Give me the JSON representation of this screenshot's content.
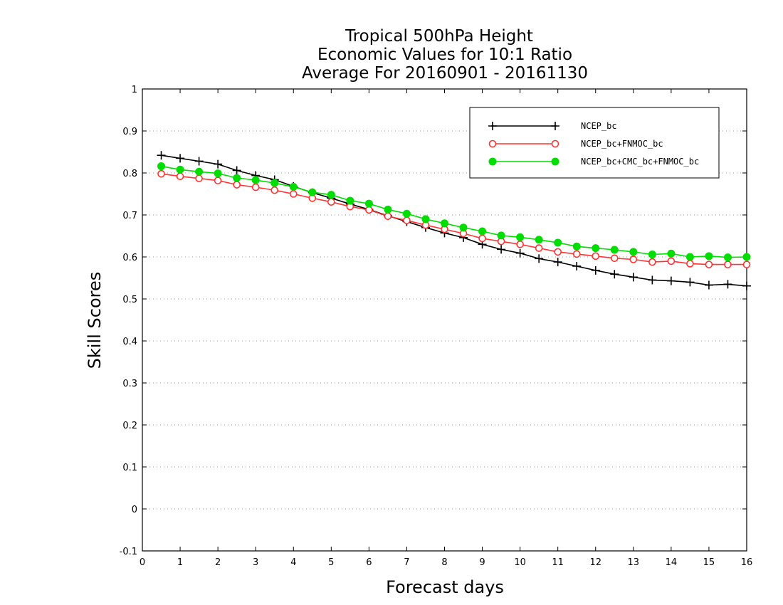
{
  "chart_data": {
    "type": "line",
    "title_lines": [
      "Tropical 500hPa Height",
      "Economic Values for 10:1 Ratio",
      "Average For 20160901 - 20161130"
    ],
    "xlabel": "Forecast days",
    "ylabel": "Skill Scores",
    "xlim": [
      0,
      16
    ],
    "ylim": [
      -0.1,
      1
    ],
    "xticks": [
      "0",
      "1",
      "2",
      "3",
      "4",
      "5",
      "6",
      "7",
      "8",
      "9",
      "10",
      "11",
      "12",
      "13",
      "14",
      "15",
      "16"
    ],
    "yticks": [
      "-0.1",
      "0",
      "0.1",
      "0.2",
      "0.3",
      "0.4",
      "0.5",
      "0.6",
      "0.7",
      "0.8",
      "0.9",
      "1"
    ],
    "grid": "horizontal dotted",
    "legend_position": "top-right",
    "x": [
      0.5,
      1,
      1.5,
      2,
      2.5,
      3,
      3.5,
      4,
      4.5,
      5,
      5.5,
      6,
      6.5,
      7,
      7.5,
      8,
      8.5,
      9,
      9.5,
      10,
      10.5,
      11,
      11.5,
      12,
      12.5,
      13,
      13.5,
      14,
      14.5,
      15,
      15.5,
      16
    ],
    "series": [
      {
        "name": "NCEP_bc",
        "color": "#000000",
        "marker": "plus",
        "values": [
          0.842,
          0.835,
          0.828,
          0.821,
          0.806,
          0.794,
          0.784,
          0.768,
          0.753,
          0.74,
          0.726,
          0.713,
          0.698,
          0.684,
          0.67,
          0.657,
          0.646,
          0.63,
          0.618,
          0.609,
          0.596,
          0.588,
          0.578,
          0.568,
          0.559,
          0.552,
          0.545,
          0.543,
          0.54,
          0.533,
          0.535,
          0.531
        ]
      },
      {
        "name": "NCEP_bc+FNMOC_bc",
        "color": "#ff3333",
        "marker": "open-circle",
        "values": [
          0.798,
          0.792,
          0.787,
          0.782,
          0.772,
          0.766,
          0.759,
          0.75,
          0.74,
          0.731,
          0.72,
          0.712,
          0.697,
          0.687,
          0.676,
          0.666,
          0.656,
          0.644,
          0.637,
          0.63,
          0.621,
          0.612,
          0.607,
          0.602,
          0.597,
          0.594,
          0.588,
          0.59,
          0.584,
          0.582,
          0.582,
          0.582
        ]
      },
      {
        "name": "NCEP_bc+CMC_bc+FNMOC_bc",
        "color": "#00dd00",
        "marker": "filled-circle",
        "values": [
          0.816,
          0.808,
          0.803,
          0.799,
          0.788,
          0.783,
          0.776,
          0.767,
          0.754,
          0.748,
          0.734,
          0.727,
          0.713,
          0.703,
          0.69,
          0.68,
          0.67,
          0.661,
          0.651,
          0.647,
          0.641,
          0.634,
          0.625,
          0.621,
          0.617,
          0.612,
          0.606,
          0.608,
          0.6,
          0.602,
          0.599,
          0.6
        ]
      }
    ]
  }
}
